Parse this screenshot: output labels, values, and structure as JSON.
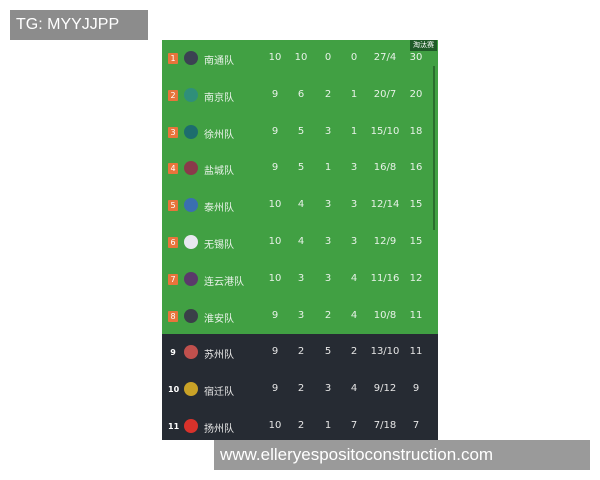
{
  "watermark_top": "TG: MYYJJPP",
  "watermark_bottom": "www.elleryespositoconstruction.com",
  "badge": "淘汰赛",
  "colors": {
    "qualified_bg": "#41a043",
    "eliminated_bg": "#262b33",
    "rank_badge": "#e8743b"
  },
  "rows": [
    {
      "rank": "1",
      "team": "南通队",
      "played": "10",
      "won": "10",
      "drawn": "0",
      "lost": "0",
      "goals": "27/4",
      "points": "30",
      "logo": "#3b4252"
    },
    {
      "rank": "2",
      "team": "南京队",
      "played": "9",
      "won": "6",
      "drawn": "2",
      "lost": "1",
      "goals": "20/7",
      "points": "20",
      "logo": "#2f8f7a"
    },
    {
      "rank": "3",
      "team": "徐州队",
      "played": "9",
      "won": "5",
      "drawn": "3",
      "lost": "1",
      "goals": "15/10",
      "points": "18",
      "logo": "#1d6d6d"
    },
    {
      "rank": "4",
      "team": "盐城队",
      "played": "9",
      "won": "5",
      "drawn": "1",
      "lost": "3",
      "goals": "16/8",
      "points": "16",
      "logo": "#8a3a4a"
    },
    {
      "rank": "5",
      "team": "泰州队",
      "played": "10",
      "won": "4",
      "drawn": "3",
      "lost": "3",
      "goals": "12/14",
      "points": "15",
      "logo": "#3a6fb0"
    },
    {
      "rank": "6",
      "team": "无锡队",
      "played": "10",
      "won": "4",
      "drawn": "3",
      "lost": "3",
      "goals": "12/9",
      "points": "15",
      "logo": "#e8e8f0"
    },
    {
      "rank": "7",
      "team": "连云港队",
      "played": "10",
      "won": "3",
      "drawn": "3",
      "lost": "4",
      "goals": "11/16",
      "points": "12",
      "logo": "#5a3a6a"
    },
    {
      "rank": "8",
      "team": "淮安队",
      "played": "9",
      "won": "3",
      "drawn": "2",
      "lost": "4",
      "goals": "10/8",
      "points": "11",
      "logo": "#3a3f48"
    },
    {
      "rank": "9",
      "team": "苏州队",
      "played": "9",
      "won": "2",
      "drawn": "5",
      "lost": "2",
      "goals": "13/10",
      "points": "11",
      "logo": "#c0504d"
    },
    {
      "rank": "10",
      "team": "宿迁队",
      "played": "9",
      "won": "2",
      "drawn": "3",
      "lost": "4",
      "goals": "9/12",
      "points": "9",
      "logo": "#c9a227"
    },
    {
      "rank": "11",
      "team": "扬州队",
      "played": "10",
      "won": "2",
      "drawn": "1",
      "lost": "7",
      "goals": "7/18",
      "points": "7",
      "logo": "#d9322b"
    }
  ]
}
